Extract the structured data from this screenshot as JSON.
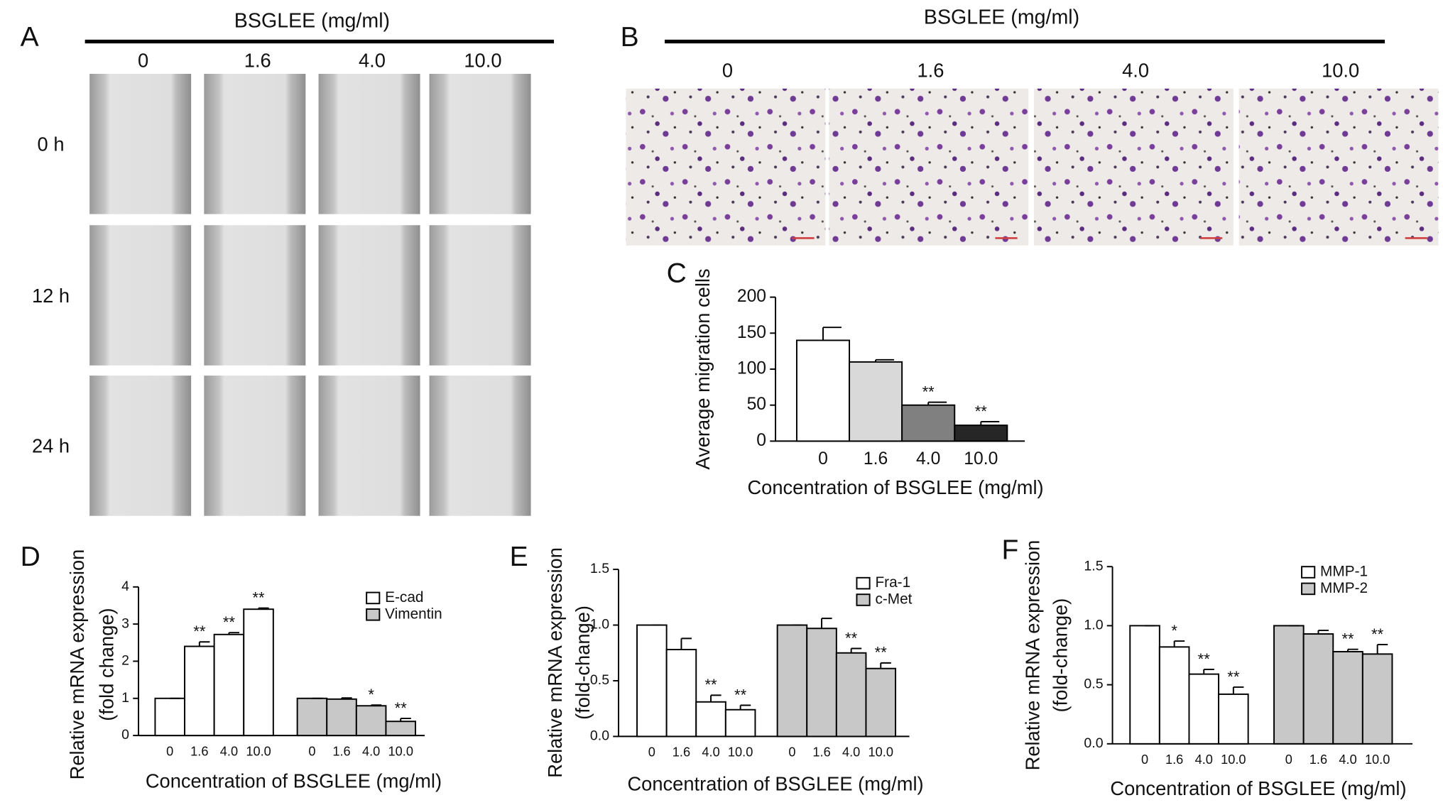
{
  "figure_a": {
    "label": "A",
    "header": "BSGLEE (mg/ml)",
    "columns": [
      "0",
      "1.6",
      "4.0",
      "10.0"
    ],
    "rows": [
      "0 h",
      "12 h",
      "24 h"
    ]
  },
  "figure_b": {
    "label": "B",
    "header": "BSGLEE (mg/ml)",
    "columns": [
      "0",
      "1.6",
      "4.0",
      "10.0"
    ]
  },
  "chart_data": [
    {
      "type": "bar",
      "label": "C",
      "xlabel": "Concentration of BSGLEE (mg/ml)",
      "ylabel": "Average migration cells",
      "categories": [
        "0",
        "1.6",
        "4.0",
        "10.0"
      ],
      "series": [
        {
          "colors": [
            "#ffffff",
            "#d9d9d9",
            "#808080",
            "#262626"
          ],
          "values": [
            140,
            110,
            50,
            22
          ],
          "errors": [
            18,
            3,
            4,
            5
          ],
          "significance": [
            null,
            null,
            "**",
            "**"
          ]
        }
      ],
      "ylim": [
        0,
        200
      ],
      "yticks": [
        0,
        50,
        100,
        150,
        200
      ]
    },
    {
      "type": "bar",
      "label": "D",
      "xlabel": "Concentration of BSGLEE (mg/ml)",
      "ylabel": [
        "Relative mRNA expression",
        "(fold change)"
      ],
      "categories": [
        "0",
        "1.6",
        "4.0",
        "10.0"
      ],
      "series": [
        {
          "name": "E-cad",
          "color": "#ffffff",
          "values": [
            1,
            2.4,
            2.72,
            3.4
          ],
          "errors": [
            0,
            0.12,
            0.05,
            0.03
          ],
          "significance": [
            null,
            "**",
            "**",
            "**"
          ]
        },
        {
          "name": "Vimentin",
          "color": "#c8c8c8",
          "values": [
            1,
            0.98,
            0.8,
            0.38
          ],
          "errors": [
            0,
            0.03,
            0.02,
            0.08
          ],
          "significance": [
            null,
            null,
            "*",
            "**"
          ]
        }
      ],
      "ylim": [
        0,
        4
      ],
      "yticks": [
        0,
        1,
        2,
        3,
        4
      ],
      "legend": "upper right"
    },
    {
      "type": "bar",
      "label": "E",
      "xlabel": "Concentration of BSGLEE (mg/ml)",
      "ylabel": [
        "Relative mRNA expression",
        "(fold-change)"
      ],
      "categories": [
        "0",
        "1.6",
        "4.0",
        "10.0"
      ],
      "series": [
        {
          "name": "Fra-1",
          "color": "#ffffff",
          "values": [
            1,
            0.78,
            0.31,
            0.24
          ],
          "errors": [
            0,
            0.1,
            0.06,
            0.04
          ],
          "significance": [
            null,
            null,
            "**",
            "**"
          ]
        },
        {
          "name": "c-Met",
          "color": "#c8c8c8",
          "values": [
            1,
            0.97,
            0.75,
            0.61
          ],
          "errors": [
            0,
            0.09,
            0.04,
            0.05
          ],
          "significance": [
            null,
            null,
            "**",
            "**"
          ]
        }
      ],
      "ylim": [
        0,
        1.5
      ],
      "yticks": [
        {
          "value": 0,
          "label": "0.0"
        },
        {
          "value": 0.5,
          "label": "0.5"
        },
        {
          "value": 1,
          "label": "1.0"
        },
        {
          "value": 1.5,
          "label": "1.5"
        }
      ],
      "legend": "upper right"
    },
    {
      "type": "bar",
      "label": "F",
      "xlabel": "Concentration of BSGLEE (mg/ml)",
      "ylabel": [
        "Relative mRNA expression",
        "(fold-change)"
      ],
      "categories": [
        "0",
        "1.6",
        "4.0",
        "10.0"
      ],
      "series": [
        {
          "name": "MMP-1",
          "color": "#ffffff",
          "values": [
            1,
            0.82,
            0.59,
            0.42
          ],
          "errors": [
            0,
            0.05,
            0.04,
            0.06
          ],
          "significance": [
            null,
            "*",
            "**",
            "**"
          ]
        },
        {
          "name": "MMP-2",
          "color": "#c8c8c8",
          "values": [
            1,
            0.93,
            0.78,
            0.76
          ],
          "errors": [
            0,
            0.03,
            0.02,
            0.08
          ],
          "significance": [
            null,
            null,
            "**",
            "**"
          ]
        }
      ],
      "ylim": [
        0,
        1.5
      ],
      "yticks": [
        {
          "value": 0,
          "label": "0.0"
        },
        {
          "value": 0.5,
          "label": "0.5"
        },
        {
          "value": 1,
          "label": "1.0"
        },
        {
          "value": 1.5,
          "label": "1.5"
        }
      ],
      "legend": "upper right"
    }
  ]
}
